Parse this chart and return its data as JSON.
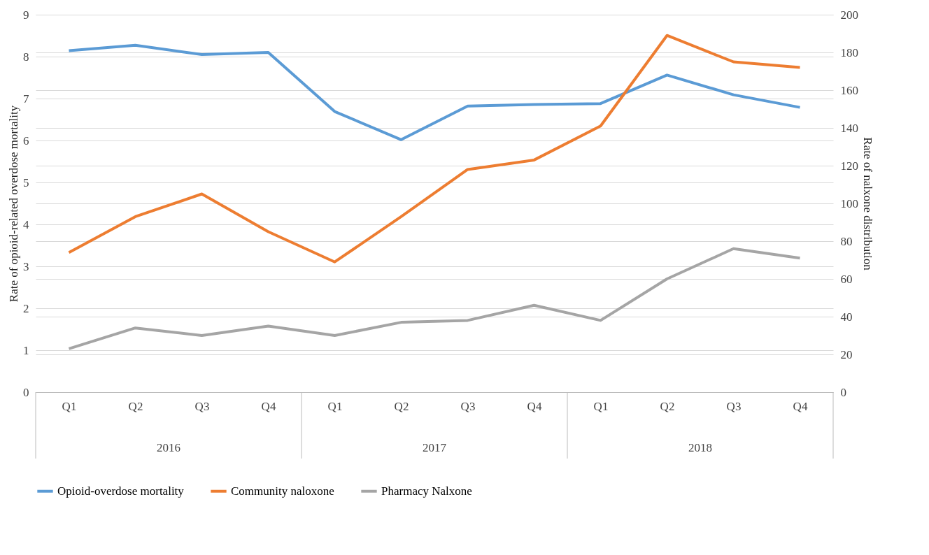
{
  "chart_data": {
    "type": "line",
    "categories": [
      "Q1",
      "Q2",
      "Q3",
      "Q4",
      "Q1",
      "Q2",
      "Q3",
      "Q4",
      "Q1",
      "Q2",
      "Q3",
      "Q4"
    ],
    "ylabel": "Rate of opioid-related overdose mortality",
    "y2label": "Rate of nalxone distribution",
    "ylim": [
      0,
      9
    ],
    "yticks": [
      0,
      1,
      2,
      3,
      4,
      5,
      6,
      7,
      8,
      9
    ],
    "y2lim": [
      0,
      200
    ],
    "y2ticks": [
      0,
      20,
      40,
      60,
      80,
      100,
      120,
      140,
      160,
      180,
      200
    ],
    "series": [
      {
        "name": "Opioid-overdose mortality",
        "color": "#5b9bd5",
        "values": [
          8.14,
          8.27,
          8.05,
          8.1,
          6.69,
          6.02,
          6.82,
          6.86,
          6.88,
          7.56,
          7.09,
          6.79
        ]
      },
      {
        "name": "Community naloxone",
        "color": "#ed7d31",
        "axis": "y2",
        "values": [
          74,
          93,
          105,
          85,
          69,
          93,
          118,
          123,
          141,
          189,
          175,
          172
        ]
      },
      {
        "name": "Pharmacy Nalxone",
        "color": "#a5a5a5",
        "axis": "y2",
        "values": [
          23,
          34,
          30,
          35,
          30,
          37,
          38,
          46,
          38,
          60,
          76,
          71
        ]
      }
    ],
    "annotations": [
      "2016",
      "2017",
      "2018"
    ],
    "grid": "y",
    "legend": "bottom",
    "marker": "none",
    "line_style": "solid"
  }
}
